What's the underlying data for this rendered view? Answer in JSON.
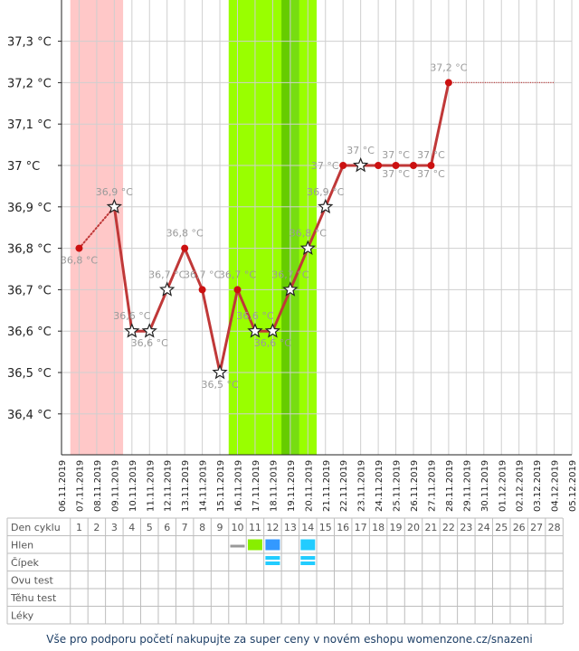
{
  "chart_data": {
    "type": "line",
    "y_axis": {
      "ylim": [
        36.3,
        37.4
      ],
      "tick_values": [
        36.4,
        36.5,
        36.6,
        36.7,
        36.8,
        36.9,
        37.0,
        37.1,
        37.2,
        37.3
      ],
      "tick_labels": [
        "36,4 °C",
        "36,5 °C",
        "36,6 °C",
        "36,7 °C",
        "36,8 °C",
        "36,9 °C",
        "37 °C",
        "37,1 °C",
        "37,2 °C",
        "37,3 °C"
      ]
    },
    "x_dates": [
      "06.11.2019",
      "07.11.2019",
      "08.11.2019",
      "09.11.2019",
      "10.11.2019",
      "11.11.2019",
      "12.11.2019",
      "13.11.2019",
      "14.11.2019",
      "15.11.2019",
      "16.11.2019",
      "17.11.2019",
      "18.11.2019",
      "19.11.2019",
      "20.11.2019",
      "21.11.2019",
      "22.11.2019",
      "23.11.2019",
      "24.11.2019",
      "25.11.2019",
      "26.11.2019",
      "27.11.2019",
      "28.11.2019",
      "29.11.2019",
      "30.11.2019",
      "01.12.2019",
      "02.12.2019",
      "03.12.2019",
      "04.12.2019",
      "05.12.2019"
    ],
    "bands": [
      {
        "name": "period",
        "from_day": 0.5,
        "to_day": 3.5,
        "color": "#ffc8c8"
      },
      {
        "name": "fertile",
        "from_day": 9.5,
        "to_day": 14.5,
        "color": "#99ff00"
      },
      {
        "name": "fertile-peak",
        "from_day": 12.5,
        "to_day": 13.5,
        "color": "#66cc00"
      },
      {
        "name": "fertile-mid",
        "from_day": 13.0,
        "to_day": 13.5,
        "color": "#77dd11"
      }
    ],
    "series": [
      {
        "points": [
          {
            "day": 1,
            "temp": 36.8,
            "label": "36,8 °C",
            "marker": "dot",
            "label_pos": "below"
          },
          {
            "day": 3,
            "temp": 36.9,
            "label": "36,9 °C",
            "marker": "star",
            "label_pos": "above"
          },
          {
            "day": 4,
            "temp": 36.6,
            "label": "36,6 °C",
            "marker": "star",
            "label_pos": "above"
          },
          {
            "day": 5,
            "temp": 36.6,
            "label": "36,6 °C",
            "marker": "star",
            "label_pos": "below"
          },
          {
            "day": 6,
            "temp": 36.7,
            "label": "36,7 °C",
            "marker": "star",
            "label_pos": "above"
          },
          {
            "day": 7,
            "temp": 36.8,
            "label": "36,8 °C",
            "marker": "dot",
            "label_pos": "above"
          },
          {
            "day": 8,
            "temp": 36.7,
            "label": "36,7 °C",
            "marker": "dot",
            "label_pos": "above"
          },
          {
            "day": 9,
            "temp": 36.5,
            "label": "36,5 °C",
            "marker": "star",
            "label_pos": "below"
          },
          {
            "day": 10,
            "temp": 36.7,
            "label": "36,7 °C",
            "marker": "dot",
            "label_pos": "above"
          },
          {
            "day": 11,
            "temp": 36.6,
            "label": "36,6 °C",
            "marker": "star",
            "label_pos": "above"
          },
          {
            "day": 12,
            "temp": 36.6,
            "label": "36,6 °C",
            "marker": "star",
            "label_pos": "below"
          },
          {
            "day": 13,
            "temp": 36.7,
            "label": "36,7 °C",
            "marker": "star",
            "label_pos": "above"
          },
          {
            "day": 14,
            "temp": 36.8,
            "label": "36,8 °C",
            "marker": "star",
            "label_pos": "above"
          },
          {
            "day": 15,
            "temp": 36.9,
            "label": "36,9 °C",
            "marker": "star",
            "label_pos": "above"
          },
          {
            "day": 16,
            "temp": 37.0,
            "label": "37 °C",
            "marker": "dot",
            "label_pos": "above-left"
          },
          {
            "day": 17,
            "temp": 37.0,
            "label": "37 °C",
            "marker": "star",
            "label_pos": "above"
          },
          {
            "day": 18,
            "temp": 37.0,
            "label": "",
            "marker": "dot",
            "label_pos": "none"
          },
          {
            "day": 19,
            "temp": 37.0,
            "label": "37 °C",
            "marker": "dot",
            "label_pos": "both"
          },
          {
            "day": 20,
            "temp": 37.0,
            "label": "",
            "marker": "dot",
            "label_pos": "none"
          },
          {
            "day": 21,
            "temp": 37.0,
            "label": "37 °C",
            "marker": "dot",
            "label_pos": "both"
          },
          {
            "day": 22,
            "temp": 37.2,
            "label": "37,2 °C",
            "marker": "dot",
            "label_pos": "above"
          }
        ],
        "dotted_segments": [
          [
            1,
            3
          ]
        ],
        "projection": {
          "from_day": 22,
          "to_day": 28,
          "temp": 37.2
        }
      }
    ],
    "grid": true
  },
  "table": {
    "rows": [
      {
        "label": "Den cyklu"
      },
      {
        "label": "Hlen"
      },
      {
        "label": "Čípek"
      },
      {
        "label": "Ovu test"
      },
      {
        "label": "Těhu test"
      },
      {
        "label": "Léky"
      }
    ],
    "cycle_days": [
      "1",
      "2",
      "3",
      "4",
      "5",
      "6",
      "7",
      "8",
      "9",
      "10",
      "11",
      "12",
      "13",
      "14",
      "15",
      "16",
      "17",
      "18",
      "19",
      "20",
      "21",
      "22",
      "23",
      "24",
      "25",
      "26",
      "27",
      "28"
    ],
    "marks": [
      {
        "row": 1,
        "day": 10,
        "kind": "bar-gray",
        "color": "#999999"
      },
      {
        "row": 1,
        "day": 11,
        "kind": "fill",
        "color": "#88ee00"
      },
      {
        "row": 1,
        "day": 12,
        "kind": "fill",
        "color": "#3399ff"
      },
      {
        "row": 1,
        "day": 14,
        "kind": "fill",
        "color": "#22ccff"
      },
      {
        "row": 2,
        "day": 12,
        "kind": "stripes",
        "color": "#22ccff"
      },
      {
        "row": 2,
        "day": 14,
        "kind": "stripes",
        "color": "#22ccff"
      }
    ]
  },
  "footer": {
    "text": "Vše pro podporu početí nakupujte za super ceny v novém eshopu womenzone.cz/snazeni"
  },
  "colors": {
    "line": "#c03838",
    "dot": "#cc1111",
    "label": "#9a9a9a",
    "grid": "#cfcfcf",
    "axis": "#222222"
  }
}
